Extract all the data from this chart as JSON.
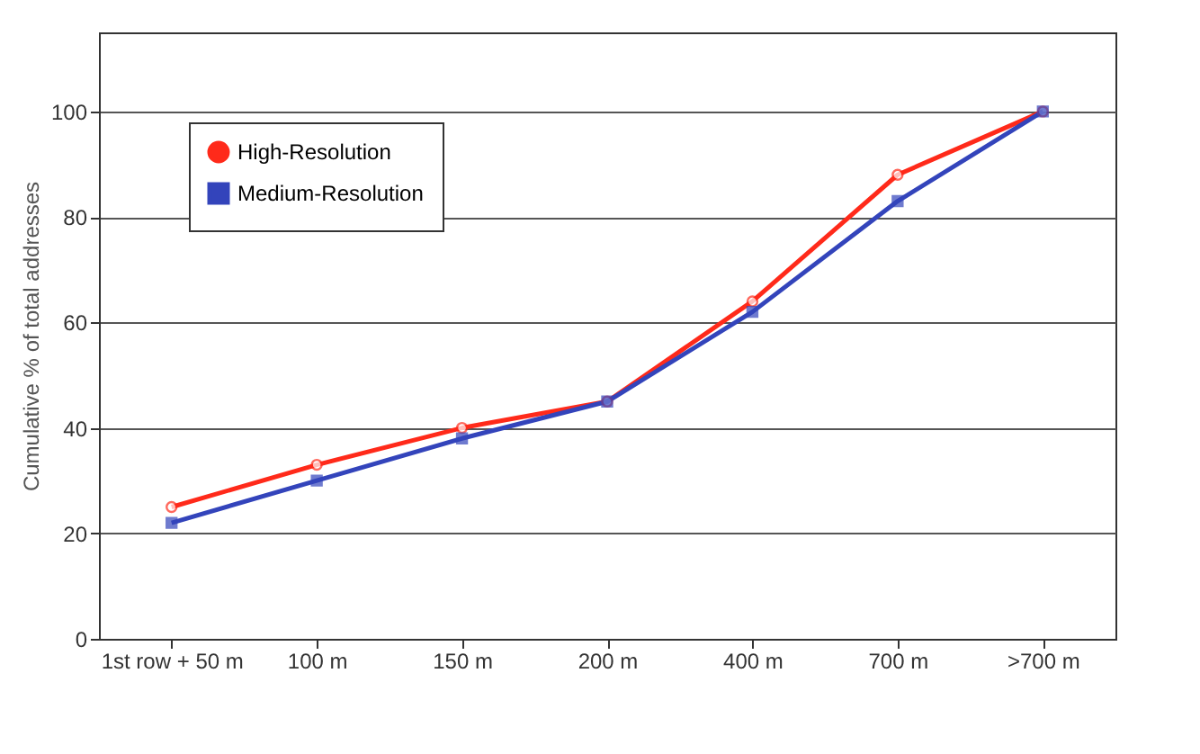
{
  "chart_data": {
    "type": "line",
    "ylabel": "Cumulative % of total addresses",
    "categories": [
      "1st row + 50 m",
      "100 m",
      "150 m",
      "200 m",
      "400 m",
      "700 m",
      ">700 m"
    ],
    "series": [
      {
        "name": "High-Resolution",
        "color": "#ff2a1a",
        "marker": "circle",
        "values": [
          25,
          33,
          40,
          45,
          64,
          88,
          100
        ]
      },
      {
        "name": "Medium-Resolution",
        "color": "#3344bb",
        "marker": "square",
        "values": [
          22,
          30,
          38,
          45,
          62,
          83,
          100
        ]
      }
    ],
    "ylim": [
      0,
      115
    ],
    "yticks": [
      0,
      20,
      40,
      60,
      80,
      100
    ],
    "grid": "y",
    "legend": "top left",
    "line_style": "solid"
  }
}
